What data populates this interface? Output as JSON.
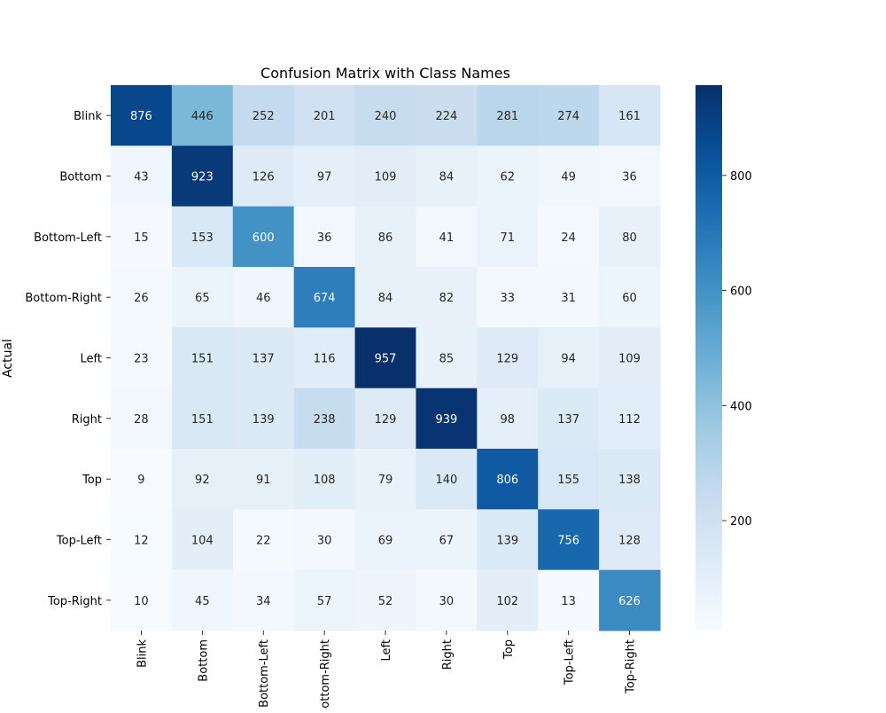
{
  "chart_data": {
    "type": "heatmap",
    "title": "Confusion Matrix with Class Names",
    "xlabel": "",
    "ylabel": "Actual",
    "row_labels": [
      "Blink",
      "Bottom",
      "Bottom-Left",
      "Bottom-Right",
      "Left",
      "Right",
      "Top",
      "Top-Left",
      "Top-Right"
    ],
    "col_labels": [
      "Blink",
      "Bottom",
      "Bottom-Left",
      "Bottom-Right",
      "Left",
      "Right",
      "Top",
      "Top-Left",
      "Top-Right"
    ],
    "values": [
      [
        876,
        446,
        252,
        201,
        240,
        224,
        281,
        274,
        161
      ],
      [
        43,
        923,
        126,
        97,
        109,
        84,
        62,
        49,
        36
      ],
      [
        15,
        153,
        600,
        36,
        86,
        41,
        71,
        24,
        80
      ],
      [
        26,
        65,
        46,
        674,
        84,
        82,
        33,
        31,
        60
      ],
      [
        23,
        151,
        137,
        116,
        957,
        85,
        129,
        94,
        109
      ],
      [
        28,
        151,
        139,
        238,
        129,
        939,
        98,
        137,
        112
      ],
      [
        9,
        92,
        91,
        108,
        79,
        140,
        806,
        155,
        138
      ],
      [
        12,
        104,
        22,
        30,
        69,
        67,
        139,
        756,
        128
      ],
      [
        10,
        45,
        34,
        57,
        52,
        30,
        102,
        13,
        626
      ]
    ],
    "colormap": "Blues",
    "colorbar": {
      "min": 9,
      "max": 957,
      "ticks": [
        200,
        400,
        600,
        800
      ]
    },
    "grid": false,
    "legend": "none"
  }
}
